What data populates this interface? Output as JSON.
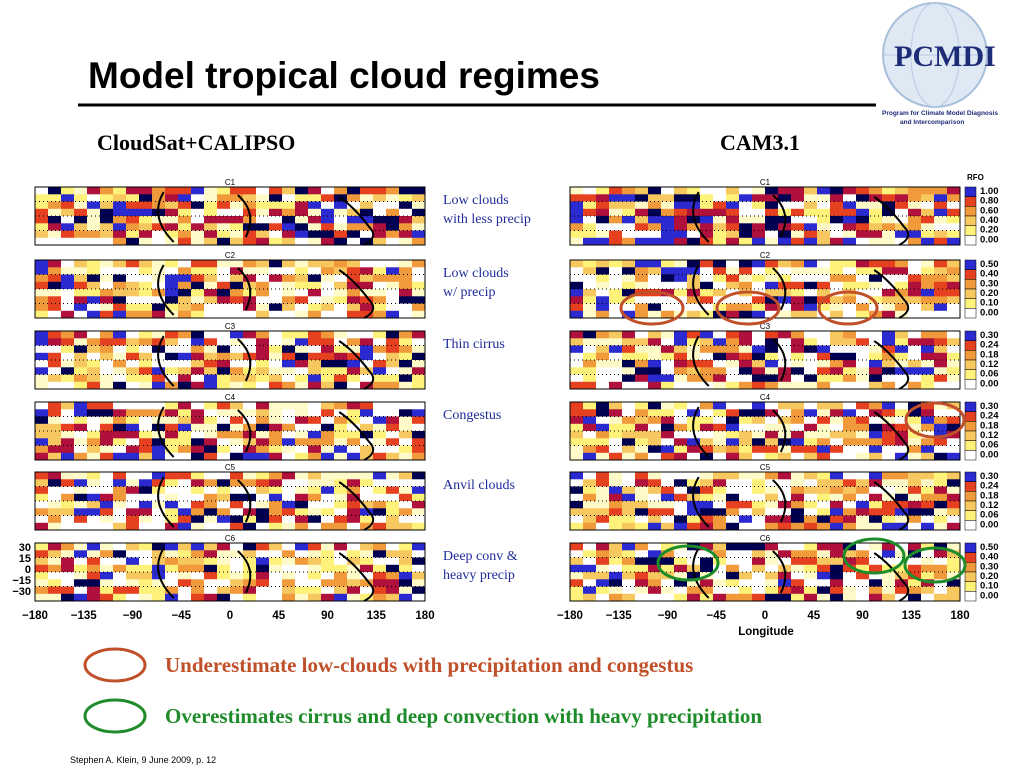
{
  "title": "Model tropical cloud regimes",
  "logo": {
    "name": "PCMDI",
    "caption": [
      "Program for Climate Model Diagnosis",
      "and Intercomparison"
    ]
  },
  "panels": [
    {
      "title": "CloudSat+CALIPSO"
    },
    {
      "title": "CAM3.1"
    }
  ],
  "colorbar_title": "RFO",
  "regimes": [
    {
      "id": "C1",
      "label": [
        "Low clouds",
        "with less precip"
      ],
      "scale": [
        "1.00",
        "0.80",
        "0.60",
        "0.40",
        "0.20",
        "0.00"
      ]
    },
    {
      "id": "C2",
      "label": [
        "Low clouds",
        "w/ precip"
      ],
      "scale": [
        "0.50",
        "0.40",
        "0.30",
        "0.20",
        "0.10",
        "0.00"
      ]
    },
    {
      "id": "C3",
      "label": [
        "Thin cirrus"
      ],
      "scale": [
        "0.30",
        "0.24",
        "0.18",
        "0.12",
        "0.06",
        "0.00"
      ]
    },
    {
      "id": "C4",
      "label": [
        "Congestus"
      ],
      "scale": [
        "0.30",
        "0.24",
        "0.18",
        "0.12",
        "0.06",
        "0.00"
      ]
    },
    {
      "id": "C5",
      "label": [
        "Anvil clouds"
      ],
      "scale": [
        "0.30",
        "0.24",
        "0.18",
        "0.12",
        "0.06",
        "0.00"
      ]
    },
    {
      "id": "C6",
      "label": [
        "Deep conv &",
        "heavy precip"
      ],
      "scale": [
        "0.50",
        "0.40",
        "0.30",
        "0.20",
        "0.10",
        "0.00"
      ]
    }
  ],
  "lon_ticks": [
    "−180",
    "−135",
    "−90",
    "−45",
    "0",
    "45",
    "90",
    "135",
    "180"
  ],
  "lat_ticks": [
    "30",
    "15",
    "0",
    "−15",
    "−30"
  ],
  "xlabel": "Longitude",
  "legend": [
    {
      "text": "Underestimate low-clouds with precipitation and congestus",
      "color": "#c0502a"
    },
    {
      "text": "Overestimates cirrus and deep convection with heavy precipitation",
      "color": "#1e8c2a"
    }
  ],
  "footer": "Stephen A. Klein, 9 June 2009, p. 12"
}
